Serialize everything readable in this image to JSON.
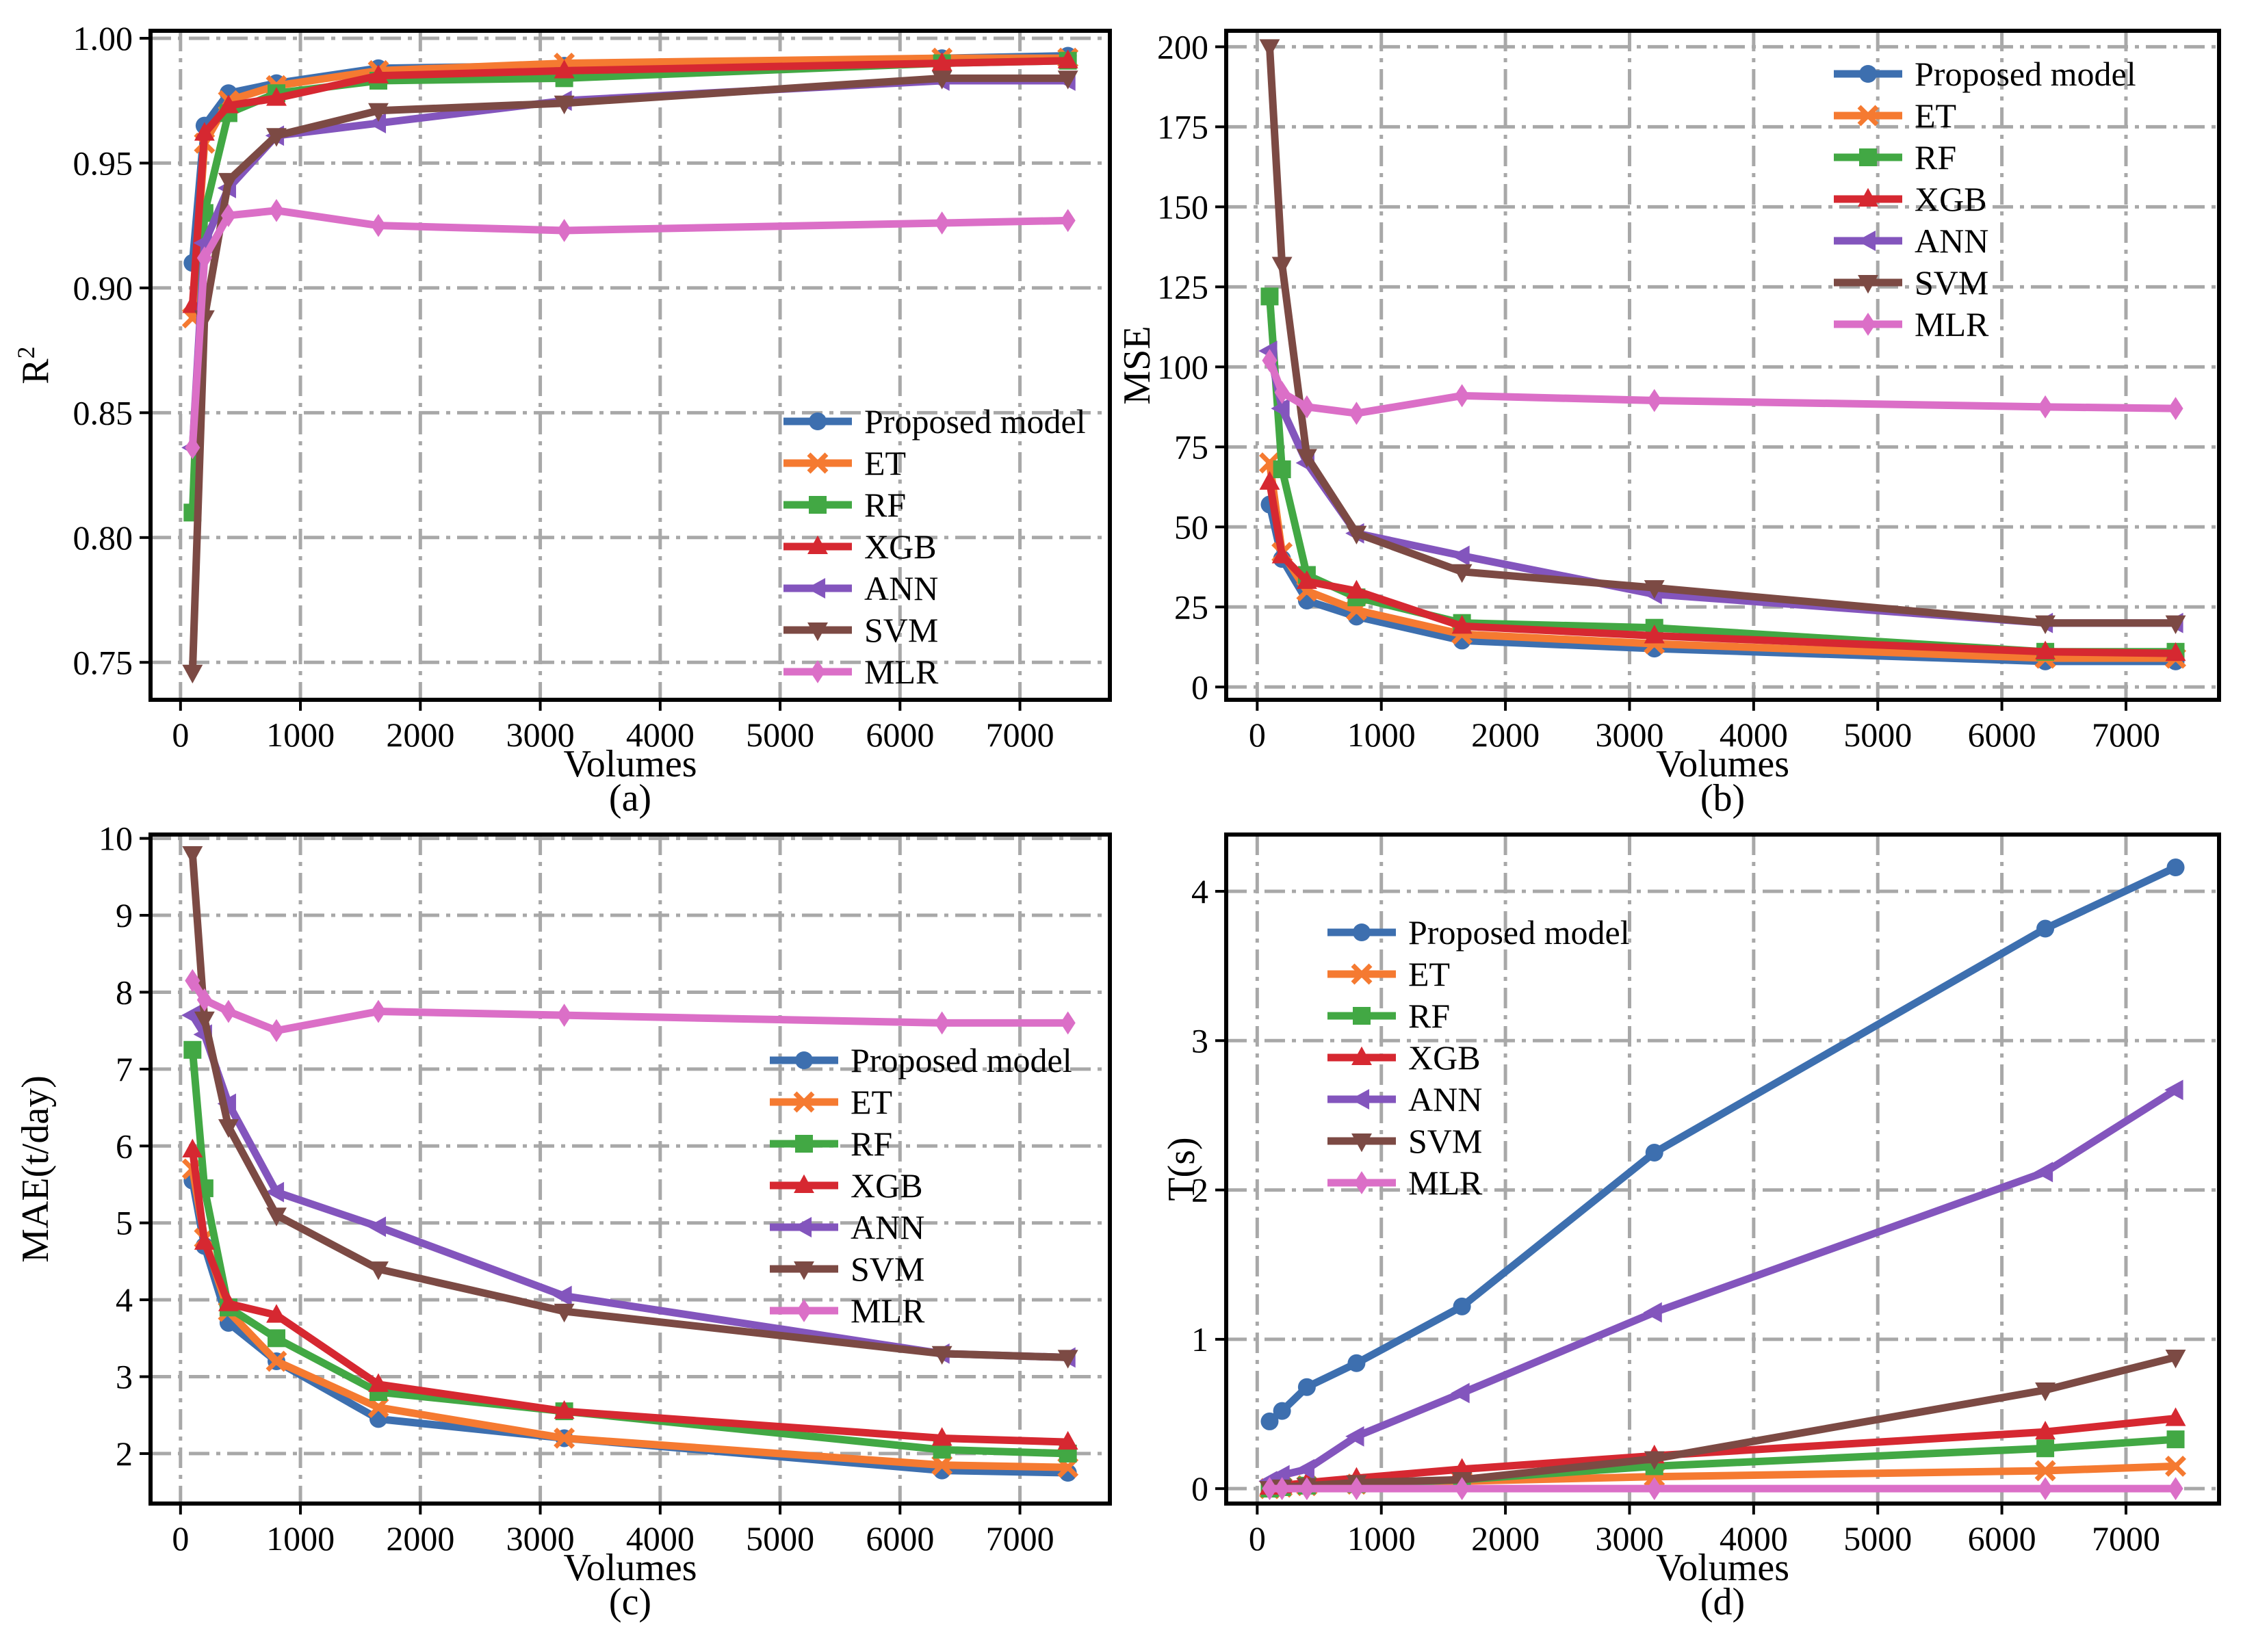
{
  "colors": {
    "Proposed model": "#3d6faf",
    "ET": "#f57a31",
    "RF": "#42a844",
    "XGB": "#d62831",
    "ANN": "#8355bd",
    "SVM": "#7c4a44",
    "MLR": "#db6fc7"
  },
  "markers": {
    "Proposed model": "circle",
    "ET": "x",
    "RF": "square",
    "XGB": "triangle-up",
    "ANN": "triangle-left",
    "SVM": "triangle-down",
    "MLR": "diamond"
  },
  "chart_data": [
    {
      "id": "a",
      "type": "line",
      "panel_label": "(a)",
      "xlabel": "Volumes",
      "ylabel": "R",
      "ylabel_sup": "2",
      "xlim": [
        -250,
        7750
      ],
      "ylim": [
        0.735,
        1.003
      ],
      "xticks": [
        0,
        1000,
        2000,
        3000,
        4000,
        5000,
        6000,
        7000
      ],
      "yticks": [
        0.75,
        0.8,
        0.85,
        0.9,
        0.95,
        1.0
      ],
      "ytick_labels": [
        "0.75",
        "0.80",
        "0.85",
        "0.90",
        "0.95",
        "1.00"
      ],
      "grid": true,
      "legend": "bottom-right",
      "x": [
        100,
        200,
        400,
        800,
        1650,
        3200,
        6350,
        7400
      ],
      "series": [
        {
          "name": "Proposed model",
          "values": [
            0.91,
            0.965,
            0.978,
            0.982,
            0.988,
            0.989,
            0.992,
            0.993
          ]
        },
        {
          "name": "ET",
          "values": [
            0.888,
            0.958,
            0.975,
            0.981,
            0.987,
            0.99,
            0.992,
            0.992
          ]
        },
        {
          "name": "RF",
          "values": [
            0.81,
            0.93,
            0.97,
            0.978,
            0.983,
            0.984,
            0.99,
            0.991
          ]
        },
        {
          "name": "XGB",
          "values": [
            0.893,
            0.962,
            0.973,
            0.976,
            0.985,
            0.987,
            0.99,
            0.991
          ]
        },
        {
          "name": "ANN",
          "values": [
            0.836,
            0.918,
            0.94,
            0.961,
            0.966,
            0.975,
            0.983,
            0.983
          ]
        },
        {
          "name": "SVM",
          "values": [
            0.746,
            0.888,
            0.943,
            0.961,
            0.971,
            0.974,
            0.984,
            0.984
          ]
        },
        {
          "name": "MLR",
          "values": [
            0.836,
            0.912,
            0.929,
            0.931,
            0.925,
            0.923,
            0.926,
            0.927
          ]
        }
      ]
    },
    {
      "id": "b",
      "type": "line",
      "panel_label": "(b)",
      "xlabel": "Volumes",
      "ylabel": "MSE",
      "xlim": [
        -250,
        7750
      ],
      "ylim": [
        -4,
        205
      ],
      "xticks": [
        0,
        1000,
        2000,
        3000,
        4000,
        5000,
        6000,
        7000
      ],
      "yticks": [
        0,
        25,
        50,
        75,
        100,
        125,
        150,
        175,
        200
      ],
      "ytick_labels": [
        "0",
        "25",
        "50",
        "75",
        "100",
        "125",
        "150",
        "175",
        "200"
      ],
      "grid": true,
      "legend": "top-right",
      "x": [
        100,
        200,
        400,
        800,
        1650,
        3200,
        6350,
        7400
      ],
      "series": [
        {
          "name": "Proposed model",
          "values": [
            57,
            40,
            27,
            22,
            14.5,
            12,
            8,
            8
          ]
        },
        {
          "name": "ET",
          "values": [
            70,
            42,
            30,
            24,
            16.5,
            13.5,
            9,
            9
          ]
        },
        {
          "name": "RF",
          "values": [
            122,
            68,
            35,
            28,
            20,
            18.5,
            11,
            11
          ]
        },
        {
          "name": "XGB",
          "values": [
            64,
            41,
            33,
            30,
            19,
            16,
            11,
            10.5
          ]
        },
        {
          "name": "ANN",
          "values": [
            105,
            87,
            70,
            48,
            41,
            29,
            20,
            20
          ]
        },
        {
          "name": "SVM",
          "values": [
            200,
            132,
            72,
            48,
            36,
            31,
            20,
            20
          ]
        },
        {
          "name": "MLR",
          "values": [
            102,
            92,
            87.5,
            85.5,
            91,
            89.5,
            87.5,
            87
          ]
        }
      ]
    },
    {
      "id": "c",
      "type": "line",
      "panel_label": "(c)",
      "xlabel": "Volumes",
      "ylabel": "MAE(t/day)",
      "xlim": [
        -250,
        7750
      ],
      "ylim": [
        1.35,
        10.05
      ],
      "xticks": [
        0,
        1000,
        2000,
        3000,
        4000,
        5000,
        6000,
        7000
      ],
      "yticks": [
        2,
        3,
        4,
        5,
        6,
        7,
        8,
        9,
        10
      ],
      "ytick_labels": [
        "2",
        "3",
        "4",
        "5",
        "6",
        "7",
        "8",
        "9",
        "10"
      ],
      "grid": true,
      "legend": "center-right",
      "x": [
        100,
        200,
        400,
        800,
        1650,
        3200,
        6350,
        7400
      ],
      "series": [
        {
          "name": "Proposed model",
          "values": [
            5.55,
            4.7,
            3.7,
            3.2,
            2.45,
            2.2,
            1.78,
            1.75
          ]
        },
        {
          "name": "ET",
          "values": [
            5.7,
            4.8,
            3.85,
            3.2,
            2.6,
            2.2,
            1.85,
            1.82
          ]
        },
        {
          "name": "RF",
          "values": [
            7.25,
            5.45,
            3.9,
            3.5,
            2.8,
            2.55,
            2.05,
            2.0
          ]
        },
        {
          "name": "XGB",
          "values": [
            5.95,
            4.75,
            3.95,
            3.8,
            2.9,
            2.55,
            2.2,
            2.15
          ]
        },
        {
          "name": "ANN",
          "values": [
            7.7,
            7.45,
            6.55,
            5.4,
            4.95,
            4.05,
            3.3,
            3.25
          ]
        },
        {
          "name": "SVM",
          "values": [
            9.8,
            7.65,
            6.25,
            5.1,
            4.4,
            3.85,
            3.3,
            3.25
          ]
        },
        {
          "name": "MLR",
          "values": [
            8.15,
            7.9,
            7.75,
            7.5,
            7.75,
            7.7,
            7.6,
            7.6
          ]
        }
      ]
    },
    {
      "id": "d",
      "type": "line",
      "panel_label": "(d)",
      "xlabel": "Volumes",
      "ylabel": "T(s)",
      "xlim": [
        -250,
        7750
      ],
      "ylim": [
        -0.1,
        4.38
      ],
      "xticks": [
        0,
        1000,
        2000,
        3000,
        4000,
        5000,
        6000,
        7000
      ],
      "yticks": [
        0,
        1,
        2,
        3,
        4
      ],
      "ytick_labels": [
        "0",
        "1",
        "2",
        "3",
        "4"
      ],
      "grid": true,
      "legend": "top-left",
      "x": [
        100,
        200,
        400,
        800,
        1650,
        3200,
        6350,
        7400
      ],
      "series": [
        {
          "name": "Proposed model",
          "values": [
            0.45,
            0.52,
            0.68,
            0.84,
            1.22,
            2.25,
            3.75,
            4.16
          ]
        },
        {
          "name": "ET",
          "values": [
            0.0,
            0.01,
            0.02,
            0.03,
            0.05,
            0.08,
            0.12,
            0.15
          ]
        },
        {
          "name": "RF",
          "values": [
            0.0,
            0.01,
            0.02,
            0.03,
            0.06,
            0.15,
            0.27,
            0.33
          ]
        },
        {
          "name": "XGB",
          "values": [
            0.01,
            0.02,
            0.04,
            0.07,
            0.13,
            0.22,
            0.38,
            0.47
          ]
        },
        {
          "name": "ANN",
          "values": [
            0.05,
            0.09,
            0.13,
            0.35,
            0.64,
            1.18,
            2.12,
            2.67
          ]
        },
        {
          "name": "SVM",
          "values": [
            0.0,
            0.01,
            0.02,
            0.04,
            0.06,
            0.2,
            0.66,
            0.88
          ]
        },
        {
          "name": "MLR",
          "values": [
            0.0,
            0.0,
            0.0,
            0.0,
            0.0,
            0.0,
            0.0,
            0.0
          ]
        }
      ]
    }
  ]
}
